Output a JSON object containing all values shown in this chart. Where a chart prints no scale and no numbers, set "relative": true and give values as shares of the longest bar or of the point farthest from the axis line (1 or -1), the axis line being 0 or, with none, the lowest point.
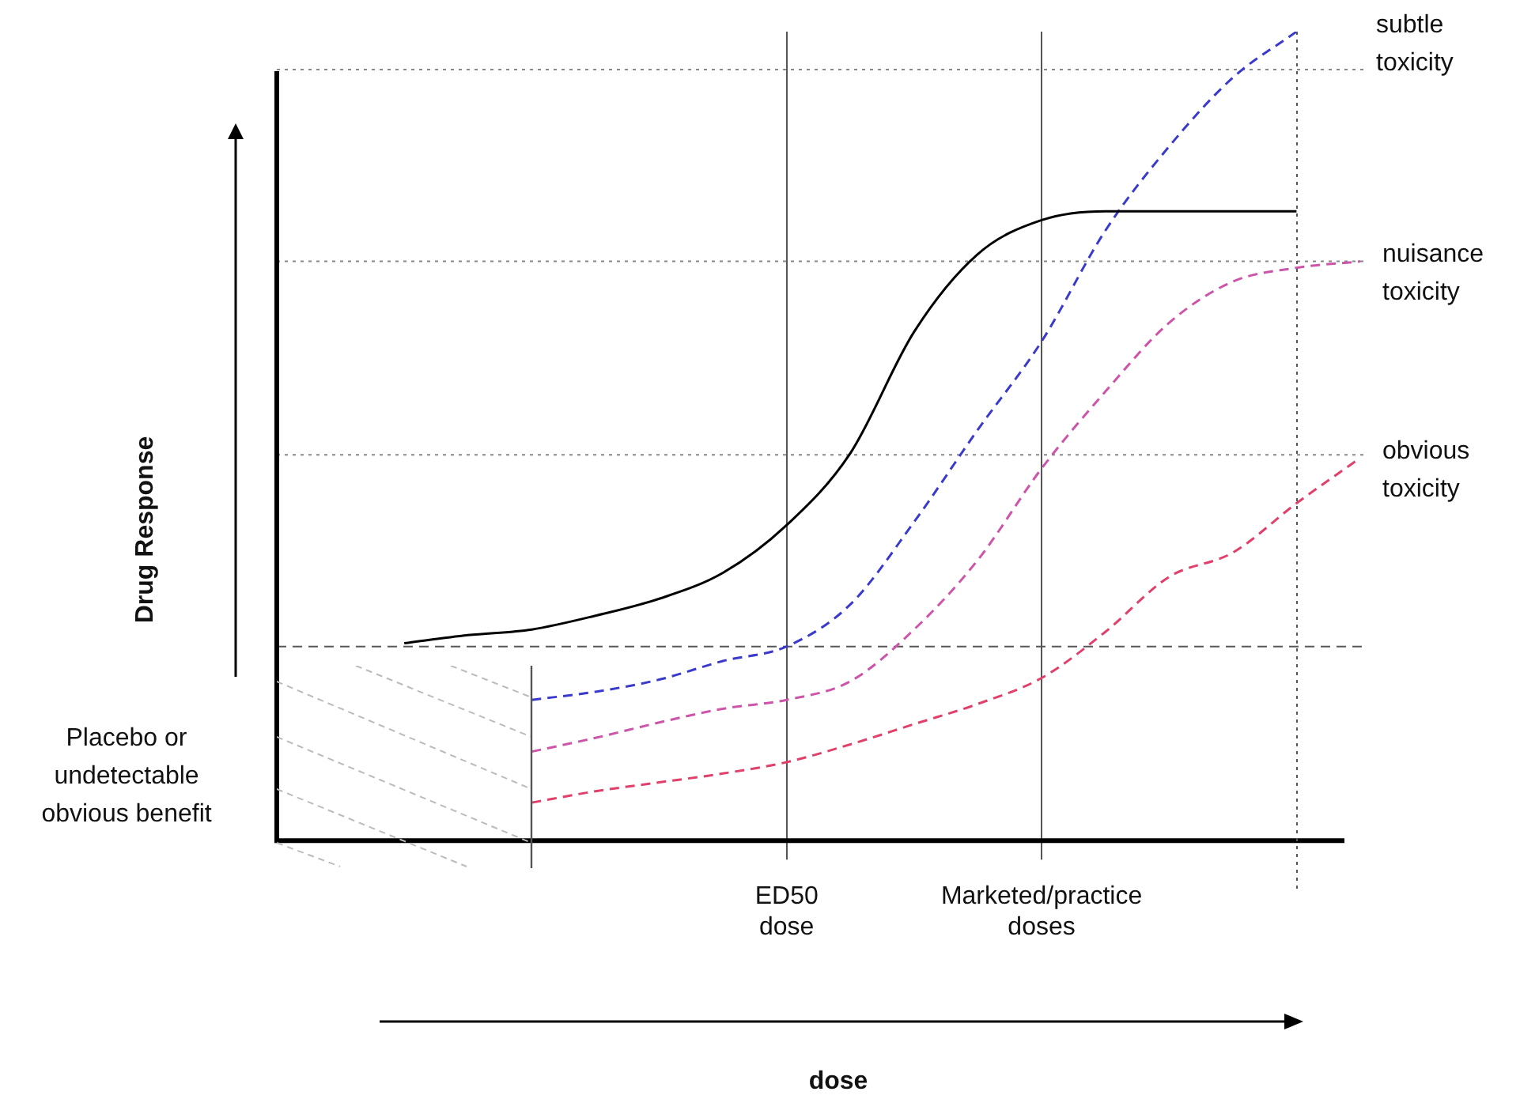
{
  "chart_data": {
    "type": "line",
    "relative": true,
    "ylabel": "Drug Response",
    "annotations": [
      "Placebo or undetectable obvious benefit",
      "dose"
    ],
    "categories": [
      null,
      null,
      null,
      null,
      null,
      null,
      null,
      null,
      "ED50 dose",
      null,
      null,
      null,
      "Marketed/practice doses",
      null,
      null,
      null,
      null,
      null
    ],
    "legend": false,
    "marker": "none",
    "grid": "x",
    "series": [
      {
        "color": "#000000",
        "line_style": "solid",
        "values": [
          null,
          null,
          0.244,
          0.254,
          0.261,
          0.278,
          0.299,
          0.331,
          0.39,
          0.479,
          0.629,
          0.725,
          0.767,
          0.778,
          0.778,
          0.778,
          0.778,
          null
        ]
      },
      {
        "name": "subtle toxicity",
        "color": "#3a3acc",
        "line_style": "dashed",
        "values": [
          null,
          null,
          null,
          null,
          0.174,
          0.184,
          0.199,
          0.222,
          0.24,
          0.292,
          0.394,
          0.508,
          0.617,
          0.754,
          0.858,
          0.943,
          1,
          null
        ]
      },
      {
        "name": "nuisance toxicity",
        "color": "#cc55aa",
        "line_style": "dashed",
        "values": [
          null,
          null,
          null,
          null,
          0.11,
          0.127,
          0.146,
          0.163,
          0.174,
          0.197,
          0.261,
          0.347,
          0.46,
          0.555,
          0.64,
          0.691,
          0.708,
          0.716
        ]
      },
      {
        "name": "obvious toxicity",
        "color": "#e0406a",
        "line_style": "dashed",
        "values": [
          null,
          null,
          null,
          null,
          0.047,
          0.061,
          0.072,
          0.083,
          0.097,
          0.119,
          0.144,
          0.169,
          0.201,
          0.258,
          0.326,
          0.356,
          0.417,
          0.473
        ]
      }
    ],
    "ref_lines": [
      {
        "axis": "y",
        "value": 0.953,
        "color": "#888888",
        "line_style": "dotted"
      },
      {
        "axis": "y",
        "value": 0.716,
        "color": "#888888",
        "line_style": "dotted"
      },
      {
        "axis": "y",
        "value": 0.477,
        "color": "#888888",
        "line_style": "dotted"
      },
      {
        "axis": "y",
        "value": 0.24,
        "color": "#555555",
        "line_style": "dashed"
      }
    ]
  }
}
